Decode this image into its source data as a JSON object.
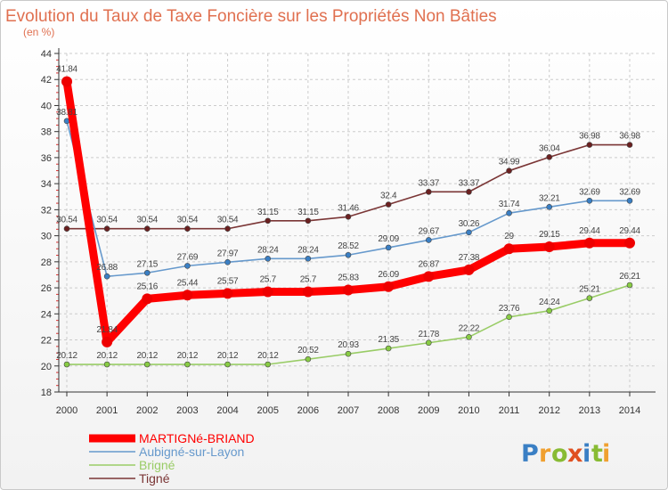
{
  "chart_data": {
    "type": "line",
    "title": "Evolution du Taux de Taxe Foncière sur les Propriétés Non Bâties",
    "subtitle": "(en %)",
    "xlabel": "",
    "ylabel": "",
    "x": [
      "2000",
      "2001",
      "2002",
      "2003",
      "2004",
      "2005",
      "2006",
      "2007",
      "2008",
      "2009",
      "2010",
      "2011",
      "2012",
      "2013",
      "2014"
    ],
    "ylim": [
      18,
      44
    ],
    "yticks": [
      "18",
      "20",
      "22",
      "24",
      "26",
      "28",
      "30",
      "32",
      "34",
      "36",
      "38",
      "40",
      "42",
      "44"
    ],
    "legend_position": "bottom-left",
    "series": [
      {
        "name": "Tigné",
        "color": "#7a3535",
        "marker": "#6b2020",
        "values": [
          30.54,
          30.54,
          30.54,
          30.54,
          30.54,
          31.15,
          31.15,
          31.46,
          32.4,
          33.37,
          33.37,
          34.99,
          36.04,
          36.98,
          36.98
        ],
        "labels": [
          "30.54",
          "30.54",
          "30.54",
          "30.54",
          "30.54",
          "31.15",
          "31.15",
          "31.46",
          "32.4",
          "33.37",
          "33.37",
          "34.99",
          "36.04",
          "36.98",
          "36.98"
        ]
      },
      {
        "name": "Aubigné-sur-Layon",
        "color": "#6699cc",
        "marker": "#3a7fc4",
        "values": [
          38.81,
          26.88,
          27.15,
          27.69,
          27.97,
          28.24,
          28.24,
          28.52,
          29.09,
          29.67,
          30.26,
          31.74,
          32.21,
          32.69,
          32.69
        ],
        "labels": [
          "38.81",
          "26.88",
          "27.15",
          "27.69",
          "27.97",
          "28.24",
          "28.24",
          "28.52",
          "29.09",
          "29.67",
          "30.26",
          "31.74",
          "32.21",
          "32.69",
          "32.69"
        ]
      },
      {
        "name": "Brigné",
        "color": "#99cc66",
        "marker": "#88cc44",
        "values": [
          20.12,
          20.12,
          20.12,
          20.12,
          20.12,
          20.12,
          20.52,
          20.93,
          21.35,
          21.78,
          22.22,
          23.76,
          24.24,
          25.21,
          26.21
        ],
        "labels": [
          "20.12",
          "20.12",
          "20.12",
          "20.12",
          "20.12",
          "20.12",
          "20.52",
          "20.93",
          "21.35",
          "21.78",
          "22.22",
          "23.76",
          "24.24",
          "25.21",
          "26.21"
        ]
      },
      {
        "name": "MARTIGNé-BRIAND",
        "color": "#ff0000",
        "marker": "#ee0000",
        "values": [
          41.84,
          21.84,
          25.16,
          25.44,
          25.57,
          25.7,
          25.7,
          25.83,
          26.09,
          26.87,
          27.38,
          29,
          29.15,
          29.44,
          29.44
        ],
        "labels": [
          "41.84",
          "21.84",
          "25.16",
          "25.44",
          "25.57",
          "25.7",
          "25.7",
          "25.83",
          "26.09",
          "26.87",
          "27.38",
          "29",
          "29.15",
          "29.44",
          "29.44"
        ]
      }
    ],
    "legend": [
      "MARTIGNé-BRIAND",
      "Aubigné-sur-Layon",
      "Brigné",
      "Tigné"
    ]
  },
  "brand": {
    "letters": [
      "P",
      "r",
      "o",
      "x",
      "i",
      "t",
      "i"
    ],
    "colors": [
      "#3a7fc4",
      "#f0a030",
      "#88bb33",
      "#e05020",
      "#3a7fc4",
      "#88bb33",
      "#f0a030"
    ]
  }
}
